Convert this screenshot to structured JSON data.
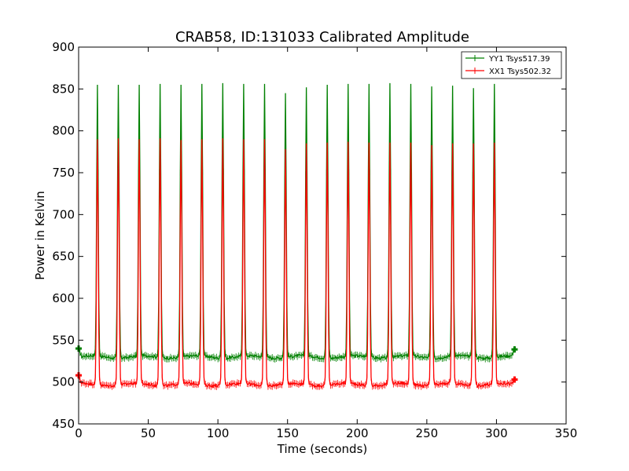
{
  "chart_data": {
    "type": "line",
    "title": "CRAB58, ID:131033 Calibrated Amplitude",
    "xlabel": "Time (seconds)",
    "ylabel": "Power in Kelvin",
    "xlim": [
      0,
      350
    ],
    "ylim": [
      450,
      900
    ],
    "xticks": [
      "0",
      "50",
      "100",
      "150",
      "200",
      "250",
      "300",
      "350"
    ],
    "yticks": [
      "450",
      "500",
      "550",
      "600",
      "650",
      "700",
      "750",
      "800",
      "850",
      "900"
    ],
    "grid": false,
    "legend_position": "top-right",
    "series": [
      {
        "name": "YY1 Tsys517.39",
        "color": "#008000",
        "baseline": 530,
        "start_value": 540,
        "end_value": 539,
        "x_start": 0,
        "x_end": 313,
        "peaks": [
          {
            "x": 13.5,
            "y": 855
          },
          {
            "x": 28.5,
            "y": 855
          },
          {
            "x": 43.5,
            "y": 855
          },
          {
            "x": 58.5,
            "y": 856
          },
          {
            "x": 73.5,
            "y": 855
          },
          {
            "x": 88.5,
            "y": 856
          },
          {
            "x": 103.5,
            "y": 857
          },
          {
            "x": 118.5,
            "y": 856
          },
          {
            "x": 133.5,
            "y": 856
          },
          {
            "x": 148.5,
            "y": 845
          },
          {
            "x": 163.5,
            "y": 852
          },
          {
            "x": 178.5,
            "y": 855
          },
          {
            "x": 193.5,
            "y": 856
          },
          {
            "x": 208.5,
            "y": 856
          },
          {
            "x": 223.5,
            "y": 857
          },
          {
            "x": 238.5,
            "y": 856
          },
          {
            "x": 253.5,
            "y": 853
          },
          {
            "x": 268.5,
            "y": 854
          },
          {
            "x": 283.5,
            "y": 851
          },
          {
            "x": 298.5,
            "y": 856
          }
        ]
      },
      {
        "name": "XX1 Tsys502.32",
        "color": "#ff0000",
        "baseline": 497,
        "start_value": 508,
        "end_value": 503,
        "x_start": 0,
        "x_end": 313,
        "peaks": [
          {
            "x": 13.5,
            "y": 790
          },
          {
            "x": 28.5,
            "y": 791
          },
          {
            "x": 43.5,
            "y": 790
          },
          {
            "x": 58.5,
            "y": 791
          },
          {
            "x": 73.5,
            "y": 789
          },
          {
            "x": 88.5,
            "y": 790
          },
          {
            "x": 103.5,
            "y": 791
          },
          {
            "x": 118.5,
            "y": 790
          },
          {
            "x": 133.5,
            "y": 790
          },
          {
            "x": 148.5,
            "y": 778
          },
          {
            "x": 163.5,
            "y": 785
          },
          {
            "x": 178.5,
            "y": 786
          },
          {
            "x": 193.5,
            "y": 787
          },
          {
            "x": 208.5,
            "y": 786
          },
          {
            "x": 223.5,
            "y": 786
          },
          {
            "x": 238.5,
            "y": 786
          },
          {
            "x": 253.5,
            "y": 783
          },
          {
            "x": 268.5,
            "y": 785
          },
          {
            "x": 283.5,
            "y": 785
          },
          {
            "x": 298.5,
            "y": 786
          }
        ]
      }
    ]
  }
}
